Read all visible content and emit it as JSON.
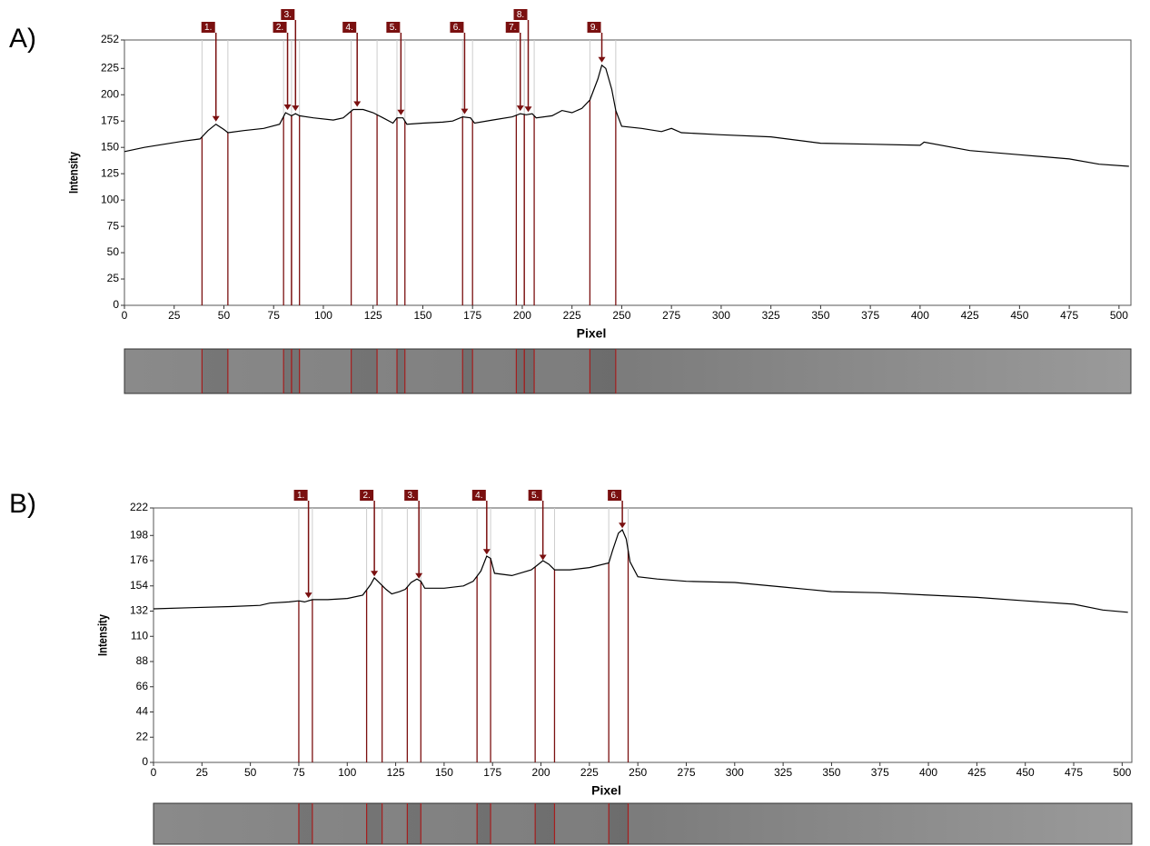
{
  "chart_data": [
    {
      "type": "line",
      "panel_label": "A)",
      "xlabel": "Pixel",
      "ylabel": "Intensity",
      "color": "#000000",
      "marker_color": "#7a1010",
      "xlim": [
        0,
        506
      ],
      "xticks": [
        0,
        25,
        50,
        75,
        100,
        125,
        150,
        175,
        200,
        225,
        250,
        275,
        300,
        325,
        350,
        375,
        400,
        425,
        450,
        475,
        500
      ],
      "ylim": [
        0,
        252
      ],
      "yticks": [
        0,
        25,
        50,
        75,
        100,
        125,
        150,
        175,
        200,
        225,
        252
      ],
      "x": [
        0,
        10,
        20,
        30,
        38,
        42,
        46,
        50,
        52,
        60,
        70,
        78,
        81,
        84,
        86,
        88,
        95,
        105,
        110,
        115,
        120,
        125,
        130,
        135,
        137,
        140,
        142,
        150,
        160,
        165,
        170,
        174,
        176,
        185,
        195,
        199,
        202,
        205,
        207,
        215,
        220,
        225,
        230,
        234,
        238,
        240,
        242,
        245,
        247,
        250,
        260,
        270,
        275,
        280,
        300,
        325,
        350,
        375,
        400,
        402,
        425,
        450,
        475,
        490,
        505
      ],
      "values": [
        146,
        150,
        153,
        156,
        158,
        166,
        172,
        167,
        164,
        166,
        168,
        172,
        183,
        180,
        182,
        180,
        178,
        176,
        178,
        186,
        186,
        183,
        178,
        173,
        178,
        178,
        172,
        173,
        174,
        175,
        179,
        178,
        173,
        176,
        179,
        182,
        181,
        182,
        178,
        180,
        185,
        183,
        187,
        195,
        215,
        228,
        225,
        205,
        185,
        170,
        168,
        165,
        168,
        164,
        162,
        160,
        154,
        153,
        152,
        155,
        147,
        143,
        139,
        134,
        132
      ],
      "annotations": [
        {
          "label": "1.",
          "x": 46,
          "y": 172,
          "band": [
            39,
            52
          ]
        },
        {
          "label": "2.",
          "x": 82,
          "y": 183,
          "band": [
            80,
            84
          ]
        },
        {
          "label": "3.",
          "x": 86,
          "y": 182,
          "band": [
            84,
            88
          ]
        },
        {
          "label": "4.",
          "x": 117,
          "y": 186,
          "band": [
            114,
            127
          ]
        },
        {
          "label": "5.",
          "x": 139,
          "y": 178,
          "band": [
            137,
            141
          ]
        },
        {
          "label": "6.",
          "x": 171,
          "y": 179,
          "band": [
            170,
            175
          ]
        },
        {
          "label": "7.",
          "x": 199,
          "y": 182,
          "band": [
            197,
            201
          ]
        },
        {
          "label": "8.",
          "x": 203,
          "y": 181,
          "band": [
            201,
            206
          ]
        },
        {
          "label": "9.",
          "x": 240,
          "y": 228,
          "band": [
            234,
            247
          ]
        }
      ]
    },
    {
      "type": "line",
      "panel_label": "B)",
      "xlabel": "Pixel",
      "ylabel": "Intensity",
      "color": "#000000",
      "marker_color": "#7a1010",
      "xlim": [
        0,
        505
      ],
      "xticks": [
        0,
        25,
        50,
        75,
        100,
        125,
        150,
        175,
        200,
        225,
        250,
        275,
        300,
        325,
        350,
        375,
        400,
        425,
        450,
        475,
        500
      ],
      "ylim": [
        0,
        222
      ],
      "yticks": [
        0,
        22,
        44,
        66,
        88,
        110,
        132,
        154,
        176,
        198,
        222
      ],
      "x": [
        0,
        20,
        40,
        55,
        60,
        70,
        75,
        78,
        82,
        90,
        100,
        108,
        112,
        114,
        117,
        120,
        123,
        127,
        130,
        133,
        136,
        138,
        140,
        150,
        160,
        165,
        169,
        172,
        174,
        176,
        185,
        195,
        198,
        201,
        204,
        207,
        215,
        225,
        235,
        237,
        240,
        242,
        244,
        246,
        250,
        260,
        275,
        300,
        325,
        350,
        375,
        400,
        425,
        450,
        475,
        490,
        503
      ],
      "values": [
        134,
        135,
        136,
        137,
        139,
        140,
        141,
        140,
        142,
        142,
        143,
        146,
        155,
        161,
        156,
        151,
        147,
        149,
        151,
        157,
        160,
        158,
        152,
        152,
        154,
        158,
        167,
        180,
        178,
        165,
        163,
        168,
        172,
        176,
        173,
        168,
        168,
        170,
        174,
        185,
        200,
        203,
        195,
        175,
        162,
        160,
        158,
        157,
        153,
        149,
        148,
        146,
        144,
        141,
        138,
        133,
        131
      ],
      "annotations": [
        {
          "label": "1.",
          "x": 80,
          "y": 141,
          "band": [
            75,
            82
          ]
        },
        {
          "label": "2.",
          "x": 114,
          "y": 160,
          "band": [
            110,
            118
          ]
        },
        {
          "label": "3.",
          "x": 137,
          "y": 158,
          "band": [
            131,
            138
          ]
        },
        {
          "label": "4.",
          "x": 172,
          "y": 179,
          "band": [
            167,
            174
          ]
        },
        {
          "label": "5.",
          "x": 201,
          "y": 174,
          "band": [
            197,
            207
          ]
        },
        {
          "label": "6.",
          "x": 242,
          "y": 202,
          "band": [
            235,
            245
          ]
        }
      ]
    }
  ]
}
